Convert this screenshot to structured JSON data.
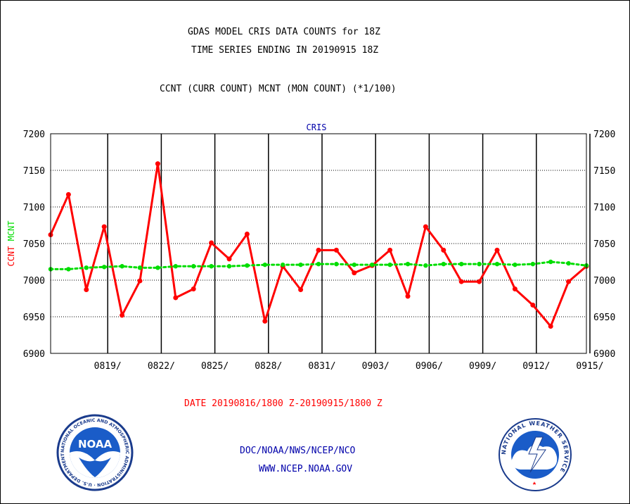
{
  "header": {
    "title_line1": "GDAS MODEL CRIS DATA COUNTS for 18Z",
    "title_line2": "TIME SERIES ENDING IN 20190915 18Z",
    "subtitle": "CCNT (CURR COUNT) MCNT (MON COUNT) (*1/100)"
  },
  "footer": {
    "date_range": "DATE 20190816/1800 Z-20190915/1800 Z",
    "org": "DOC/NOAA/NWS/NCEP/NCO",
    "url": "WWW.NCEP.NOAA.GOV"
  },
  "logos": {
    "noaa_text": "NOAA",
    "noaa_ring": "NATIONAL OCEANIC AND ATMOSPHERIC ADMINISTRATION · U.S. DEPARTMENT OF COMMERCE",
    "nws_ring": "NATIONAL WEATHER SERVICE"
  },
  "colors": {
    "ccnt": "#ff0000",
    "mcnt": "#00dd00",
    "title": "#000000",
    "panel_label": "#0000aa",
    "footer_link": "#0000aa"
  },
  "chart_data": {
    "type": "line",
    "panel_label": "CRIS",
    "ylabel_ccnt": "CCNT",
    "ylabel_mcnt": "MCNT",
    "ylim": [
      6900,
      7200
    ],
    "yticks": [
      6900,
      6950,
      7000,
      7050,
      7100,
      7150,
      7200
    ],
    "x_tick_labels": [
      "0819/",
      "0822/",
      "0825/",
      "0828/",
      "0831/",
      "0903/",
      "0906/",
      "0909/",
      "0912/",
      "0915/"
    ],
    "x": [
      "0816",
      "0817",
      "0818",
      "0819",
      "0820",
      "0821",
      "0822",
      "0823",
      "0824",
      "0825",
      "0826",
      "0827",
      "0828",
      "0829",
      "0830",
      "0831",
      "0901",
      "0902",
      "0903",
      "0904",
      "0905",
      "0906",
      "0907",
      "0908",
      "0909",
      "0910",
      "0911",
      "0912",
      "0913",
      "0914",
      "0915"
    ],
    "grid": true,
    "series": [
      {
        "name": "CCNT",
        "values": [
          7062,
          7117,
          6987,
          7073,
          6952,
          6999,
          7159,
          6976,
          6988,
          7051,
          7029,
          7063,
          6944,
          7019,
          6987,
          7041,
          7041,
          7010,
          7020,
          7041,
          6978,
          7073,
          7041,
          6998,
          6998,
          7041,
          6988,
          6966,
          6937,
          6998,
          7019
        ]
      },
      {
        "name": "MCNT",
        "values": [
          7015,
          7015,
          7017,
          7018,
          7019,
          7017,
          7017,
          7019,
          7019,
          7019,
          7019,
          7020,
          7021,
          7021,
          7021,
          7022,
          7022,
          7021,
          7021,
          7021,
          7022,
          7020,
          7022,
          7022,
          7022,
          7022,
          7021,
          7022,
          7025,
          7023,
          7020
        ]
      }
    ]
  }
}
